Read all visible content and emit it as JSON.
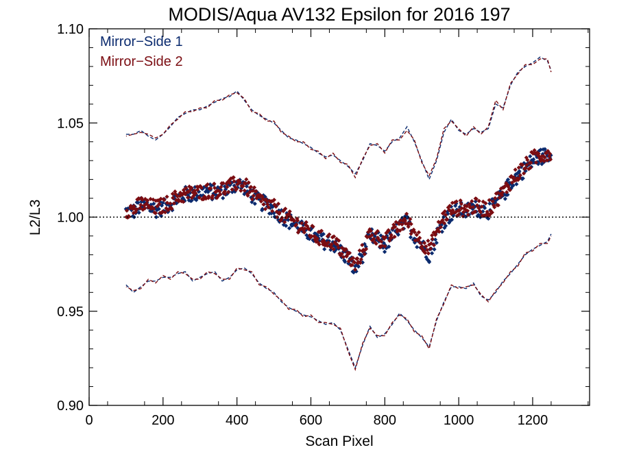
{
  "chart_data": {
    "type": "scatter",
    "title": "MODIS/Aqua AV132 Epsilon for 2016 197",
    "xlabel": "Scan Pixel",
    "ylabel": "L2/L3",
    "xlim": [
      0,
      1354
    ],
    "ylim": [
      0.9,
      1.1
    ],
    "xticks": [
      "0",
      "200",
      "400",
      "600",
      "800",
      "1000",
      "1200"
    ],
    "yticks": [
      "0.90",
      "0.95",
      "1.00",
      "1.05",
      "1.10"
    ],
    "reference_line": 1.0,
    "legend_position": "top-left",
    "series": [
      {
        "name": "Mirror−Side 1",
        "color": "#0a2a6e",
        "mean_x": [
          100,
          120,
          140,
          160,
          180,
          200,
          220,
          240,
          260,
          280,
          300,
          320,
          340,
          360,
          380,
          400,
          420,
          440,
          460,
          480,
          500,
          520,
          540,
          560,
          580,
          600,
          620,
          640,
          660,
          680,
          700,
          720,
          740,
          760,
          780,
          800,
          820,
          840,
          860,
          880,
          900,
          920,
          940,
          960,
          980,
          1000,
          1020,
          1040,
          1060,
          1080,
          1100,
          1120,
          1140,
          1160,
          1180,
          1200,
          1220,
          1240,
          1250
        ],
        "mean_y": [
          1.003,
          1.003,
          1.006,
          1.006,
          1.004,
          1.005,
          1.007,
          1.01,
          1.012,
          1.012,
          1.013,
          1.014,
          1.013,
          1.014,
          1.015,
          1.018,
          1.016,
          1.012,
          1.008,
          1.007,
          1.004,
          1.001,
          0.998,
          0.996,
          0.993,
          0.991,
          0.988,
          0.987,
          0.986,
          0.982,
          0.978,
          0.972,
          0.98,
          0.99,
          0.988,
          0.985,
          0.99,
          0.995,
          0.997,
          0.99,
          0.985,
          0.98,
          0.99,
          0.998,
          1.002,
          1.004,
          1.003,
          1.005,
          1.004,
          1.003,
          1.008,
          1.012,
          1.018,
          1.022,
          1.026,
          1.03,
          1.032,
          1.033,
          1.034
        ],
        "upper_x": [
          100,
          120,
          140,
          160,
          180,
          200,
          220,
          240,
          260,
          280,
          300,
          320,
          340,
          360,
          380,
          400,
          420,
          440,
          460,
          480,
          500,
          520,
          540,
          560,
          580,
          600,
          620,
          640,
          660,
          680,
          700,
          720,
          740,
          760,
          780,
          800,
          820,
          840,
          860,
          880,
          900,
          920,
          940,
          960,
          980,
          1000,
          1020,
          1040,
          1060,
          1080,
          1100,
          1120,
          1140,
          1160,
          1180,
          1200,
          1220,
          1240,
          1250
        ],
        "upper_y": [
          1.044,
          1.044,
          1.046,
          1.043,
          1.041,
          1.044,
          1.048,
          1.053,
          1.055,
          1.057,
          1.057,
          1.059,
          1.061,
          1.063,
          1.064,
          1.067,
          1.062,
          1.057,
          1.054,
          1.052,
          1.05,
          1.046,
          1.042,
          1.041,
          1.039,
          1.037,
          1.034,
          1.032,
          1.033,
          1.03,
          1.027,
          1.023,
          1.03,
          1.039,
          1.038,
          1.035,
          1.04,
          1.042,
          1.048,
          1.04,
          1.03,
          1.02,
          1.03,
          1.045,
          1.052,
          1.046,
          1.044,
          1.047,
          1.045,
          1.047,
          1.06,
          1.058,
          1.07,
          1.077,
          1.08,
          1.082,
          1.085,
          1.083,
          1.078
        ],
        "lower_x": [
          100,
          120,
          140,
          160,
          180,
          200,
          220,
          240,
          260,
          280,
          300,
          320,
          340,
          360,
          380,
          400,
          420,
          440,
          460,
          480,
          500,
          520,
          540,
          560,
          580,
          600,
          620,
          640,
          660,
          680,
          700,
          720,
          740,
          760,
          780,
          800,
          820,
          840,
          860,
          880,
          900,
          920,
          940,
          960,
          980,
          1000,
          1020,
          1040,
          1060,
          1080,
          1100,
          1120,
          1140,
          1160,
          1180,
          1200,
          1220,
          1240,
          1250
        ],
        "lower_y": [
          0.964,
          0.96,
          0.963,
          0.966,
          0.966,
          0.968,
          0.968,
          0.97,
          0.971,
          0.966,
          0.968,
          0.97,
          0.971,
          0.966,
          0.968,
          0.972,
          0.973,
          0.97,
          0.965,
          0.962,
          0.96,
          0.955,
          0.952,
          0.95,
          0.948,
          0.947,
          0.945,
          0.943,
          0.944,
          0.94,
          0.93,
          0.92,
          0.932,
          0.942,
          0.936,
          0.938,
          0.943,
          0.949,
          0.945,
          0.94,
          0.936,
          0.931,
          0.945,
          0.955,
          0.963,
          0.963,
          0.962,
          0.965,
          0.958,
          0.956,
          0.96,
          0.966,
          0.97,
          0.975,
          0.98,
          0.983,
          0.985,
          0.987,
          0.991
        ]
      },
      {
        "name": "Mirror−Side 2",
        "color": "#7b0d12",
        "mean_x": [
          100,
          120,
          140,
          160,
          180,
          200,
          220,
          240,
          260,
          280,
          300,
          320,
          340,
          360,
          380,
          400,
          420,
          440,
          460,
          480,
          500,
          520,
          540,
          560,
          580,
          600,
          620,
          640,
          660,
          680,
          700,
          720,
          740,
          760,
          780,
          800,
          820,
          840,
          860,
          880,
          900,
          920,
          940,
          960,
          980,
          1000,
          1020,
          1040,
          1060,
          1080,
          1100,
          1120,
          1140,
          1160,
          1180,
          1200,
          1220,
          1240,
          1250
        ],
        "mean_y": [
          1.004,
          1.004,
          1.007,
          1.006,
          1.005,
          1.006,
          1.008,
          1.011,
          1.012,
          1.013,
          1.013,
          1.014,
          1.014,
          1.015,
          1.016,
          1.018,
          1.017,
          1.013,
          1.009,
          1.007,
          1.005,
          1.002,
          0.999,
          0.997,
          0.994,
          0.992,
          0.989,
          0.988,
          0.987,
          0.983,
          0.979,
          0.974,
          0.982,
          0.991,
          0.989,
          0.987,
          0.991,
          0.996,
          0.998,
          0.992,
          0.987,
          0.983,
          0.992,
          1.0,
          1.004,
          1.005,
          1.004,
          1.006,
          1.005,
          1.004,
          1.009,
          1.013,
          1.019,
          1.023,
          1.027,
          1.031,
          1.033,
          1.034,
          1.035
        ],
        "upper_x": [
          100,
          120,
          140,
          160,
          180,
          200,
          220,
          240,
          260,
          280,
          300,
          320,
          340,
          360,
          380,
          400,
          420,
          440,
          460,
          480,
          500,
          520,
          540,
          560,
          580,
          600,
          620,
          640,
          660,
          680,
          700,
          720,
          740,
          760,
          780,
          800,
          820,
          840,
          860,
          880,
          900,
          920,
          940,
          960,
          980,
          1000,
          1020,
          1040,
          1060,
          1080,
          1100,
          1120,
          1140,
          1160,
          1180,
          1200,
          1220,
          1240,
          1250
        ],
        "upper_y": [
          1.043,
          1.044,
          1.045,
          1.044,
          1.042,
          1.044,
          1.049,
          1.052,
          1.056,
          1.056,
          1.058,
          1.058,
          1.062,
          1.062,
          1.065,
          1.066,
          1.063,
          1.056,
          1.055,
          1.051,
          1.051,
          1.045,
          1.043,
          1.04,
          1.04,
          1.036,
          1.035,
          1.031,
          1.034,
          1.029,
          1.028,
          1.021,
          1.031,
          1.038,
          1.039,
          1.034,
          1.041,
          1.041,
          1.046,
          1.041,
          1.029,
          1.022,
          1.031,
          1.047,
          1.051,
          1.047,
          1.043,
          1.048,
          1.044,
          1.048,
          1.062,
          1.057,
          1.071,
          1.076,
          1.081,
          1.081,
          1.084,
          1.084,
          1.077
        ],
        "lower_x": [
          100,
          120,
          140,
          160,
          180,
          200,
          220,
          240,
          260,
          280,
          300,
          320,
          340,
          360,
          380,
          400,
          420,
          440,
          460,
          480,
          500,
          520,
          540,
          560,
          580,
          600,
          620,
          640,
          660,
          680,
          700,
          720,
          740,
          760,
          780,
          800,
          820,
          840,
          860,
          880,
          900,
          920,
          940,
          960,
          980,
          1000,
          1020,
          1040,
          1060,
          1080,
          1100,
          1120,
          1140,
          1160,
          1180,
          1200,
          1220,
          1240,
          1250
        ],
        "lower_y": [
          0.963,
          0.961,
          0.962,
          0.967,
          0.965,
          0.969,
          0.967,
          0.971,
          0.97,
          0.967,
          0.967,
          0.971,
          0.97,
          0.967,
          0.967,
          0.973,
          0.972,
          0.971,
          0.964,
          0.963,
          0.959,
          0.956,
          0.951,
          0.951,
          0.947,
          0.948,
          0.944,
          0.944,
          0.943,
          0.941,
          0.929,
          0.919,
          0.933,
          0.941,
          0.937,
          0.937,
          0.944,
          0.948,
          0.946,
          0.939,
          0.937,
          0.93,
          0.946,
          0.954,
          0.964,
          0.962,
          0.963,
          0.964,
          0.959,
          0.955,
          0.961,
          0.965,
          0.971,
          0.974,
          0.981,
          0.982,
          0.986,
          0.986,
          0.99
        ]
      }
    ]
  }
}
